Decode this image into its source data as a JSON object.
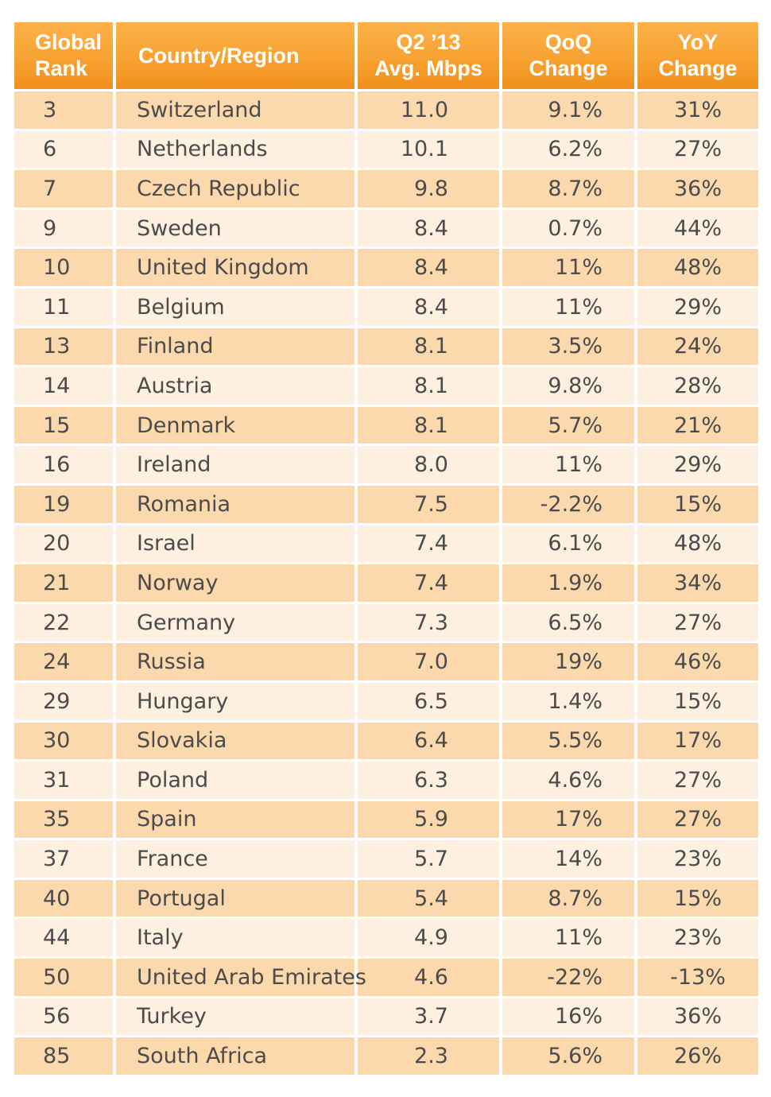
{
  "chart_data": {
    "type": "table",
    "columns": [
      "Global\nRank",
      "Country/Region",
      "Q2 ’13\nAvg. Mbps",
      "QoQ\nChange",
      "YoY\nChange"
    ],
    "rows": [
      [
        "3",
        "Switzerland",
        "11.0",
        "9.1%",
        "31%"
      ],
      [
        "6",
        "Netherlands",
        "10.1",
        "6.2%",
        "27%"
      ],
      [
        "7",
        "Czech Republic",
        "9.8",
        "8.7%",
        "36%"
      ],
      [
        "9",
        "Sweden",
        "8.4",
        "0.7%",
        "44%"
      ],
      [
        "10",
        "United Kingdom",
        "8.4",
        "11%",
        "48%"
      ],
      [
        "11",
        "Belgium",
        "8.4",
        "11%",
        "29%"
      ],
      [
        "13",
        "Finland",
        "8.1",
        "3.5%",
        "24%"
      ],
      [
        "14",
        "Austria",
        "8.1",
        "9.8%",
        "28%"
      ],
      [
        "15",
        "Denmark",
        "8.1",
        "5.7%",
        "21%"
      ],
      [
        "16",
        "Ireland",
        "8.0",
        "11%",
        "29%"
      ],
      [
        "19",
        "Romania",
        "7.5",
        "-2.2%",
        "15%"
      ],
      [
        "20",
        "Israel",
        "7.4",
        "6.1%",
        "48%"
      ],
      [
        "21",
        "Norway",
        "7.4",
        "1.9%",
        "34%"
      ],
      [
        "22",
        "Germany",
        "7.3",
        "6.5%",
        "27%"
      ],
      [
        "24",
        "Russia",
        "7.0",
        "19%",
        "46%"
      ],
      [
        "29",
        "Hungary",
        "6.5",
        "1.4%",
        "15%"
      ],
      [
        "30",
        "Slovakia",
        "6.4",
        "5.5%",
        "17%"
      ],
      [
        "31",
        "Poland",
        "6.3",
        "4.6%",
        "27%"
      ],
      [
        "35",
        "Spain",
        "5.9",
        "17%",
        "27%"
      ],
      [
        "37",
        "France",
        "5.7",
        "14%",
        "23%"
      ],
      [
        "40",
        "Portugal",
        "5.4",
        "8.7%",
        "15%"
      ],
      [
        "44",
        "Italy",
        "4.9",
        "11%",
        "23%"
      ],
      [
        "50",
        "United Arab Emirates",
        "4.6",
        "-22%",
        "-13%"
      ],
      [
        "56",
        "Turkey",
        "3.7",
        "16%",
        "36%"
      ],
      [
        "85",
        "South Africa",
        "2.3",
        "5.6%",
        "26%"
      ]
    ]
  },
  "colors": {
    "header_top": "#fbb24b",
    "header_bottom": "#f08f1c",
    "row_dark": "#fbd9ad",
    "row_light": "#fef0e0",
    "text": "#4b4b4b",
    "header_text": "#ffffff"
  }
}
